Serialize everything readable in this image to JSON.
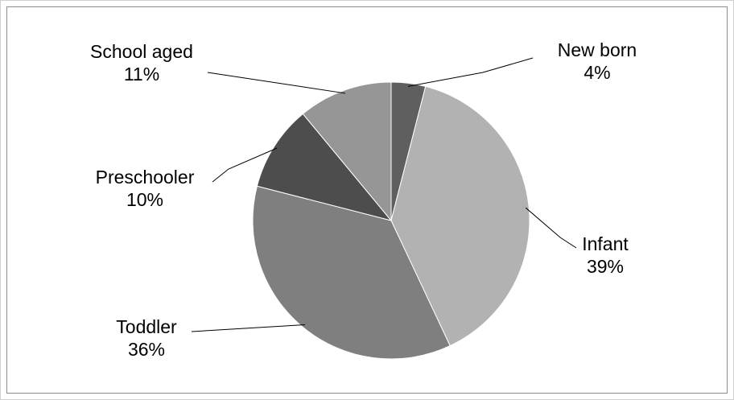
{
  "chart_data": {
    "type": "pie",
    "title": "",
    "start_angle_deg": 0,
    "direction": "clockwise",
    "slices": [
      {
        "name": "New born",
        "value": 4,
        "label": "4%",
        "color": "#5f5f5f"
      },
      {
        "name": "Infant",
        "value": 39,
        "label": "39%",
        "color": "#b2b2b2"
      },
      {
        "name": "Toddler",
        "value": 36,
        "label": "36%",
        "color": "#7f7f7f"
      },
      {
        "name": "Preschooler",
        "value": 10,
        "label": "10%",
        "color": "#4d4d4d"
      },
      {
        "name": "School aged",
        "value": 11,
        "label": "11%",
        "color": "#969696"
      }
    ],
    "legend": "none",
    "data_labels": "outside-with-leader-lines"
  }
}
